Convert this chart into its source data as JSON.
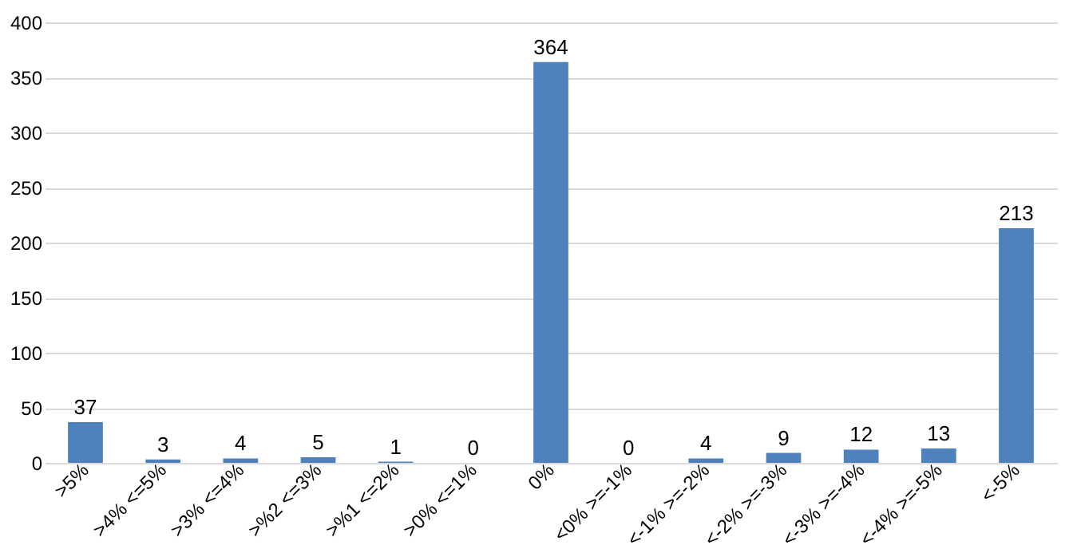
{
  "chart_data": {
    "type": "bar",
    "categories": [
      ">5%",
      ">4% <=5%",
      ">3% <=4%",
      ">%2 <=3%",
      ">%1 <=2%",
      ">0% <=1%",
      "0%",
      "<0% >=-1%",
      "<-1% >=-2%",
      "<-2% >=-3%",
      "<-3% >=-4%",
      "<-4% >=-5%",
      "<-5%"
    ],
    "values": [
      37,
      3,
      4,
      5,
      1,
      0,
      364,
      0,
      4,
      9,
      12,
      13,
      213
    ],
    "color": "#4f81bd",
    "ylim": [
      0,
      400
    ],
    "yticks": [
      0,
      50,
      100,
      150,
      200,
      250,
      300,
      350,
      400
    ],
    "grid": "y",
    "data_labels": true
  }
}
